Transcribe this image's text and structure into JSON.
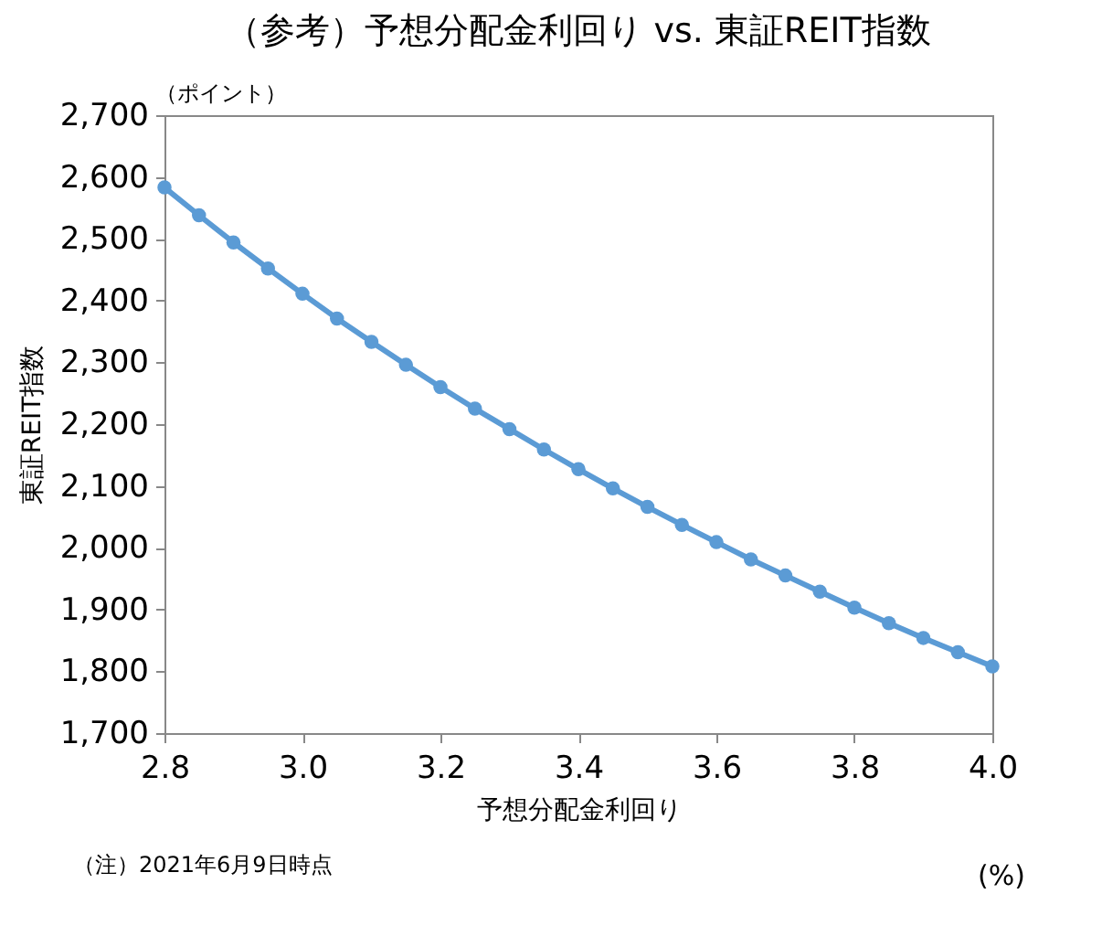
{
  "chart_data": {
    "type": "line",
    "title": "（参考）予想分配金利回り vs. 東証REIT指数",
    "xlabel": "予想分配金利回り",
    "ylabel": "東証REIT指数",
    "x": [
      2.8,
      2.85,
      2.9,
      2.95,
      3.0,
      3.05,
      3.1,
      3.15,
      3.2,
      3.25,
      3.3,
      3.35,
      3.4,
      3.45,
      3.5,
      3.55,
      3.6,
      3.65,
      3.7,
      3.75,
      3.8,
      3.85,
      3.9,
      3.95,
      4.0
    ],
    "series": [
      {
        "color": "#5b9bd5",
        "values": [
          2583,
          2538,
          2494,
          2452,
          2411,
          2371,
          2333,
          2296,
          2260,
          2225,
          2192,
          2159,
          2127,
          2096,
          2066,
          2037,
          2009,
          1981,
          1955,
          1929,
          1903,
          1878,
          1854,
          1831,
          1808
        ]
      }
    ],
    "xlim": [
      2.8,
      4.0
    ],
    "xticks": [
      2.8,
      {
        "value": 3.0,
        "label": "3.0"
      },
      3.2,
      3.4,
      3.6,
      3.8,
      {
        "value": 4.0,
        "label": "4.0"
      }
    ],
    "ylim": [
      1700,
      2700
    ],
    "yticks": [
      {
        "value": 1700,
        "label": "1,700"
      },
      {
        "value": 1800,
        "label": "1,800"
      },
      {
        "value": 1900,
        "label": "1,900"
      },
      {
        "value": 2000,
        "label": "2,000"
      },
      {
        "value": 2100,
        "label": "2,100"
      },
      {
        "value": 2200,
        "label": "2,200"
      },
      {
        "value": 2300,
        "label": "2,300"
      },
      {
        "value": 2400,
        "label": "2,400"
      },
      {
        "value": 2500,
        "label": "2,500"
      },
      {
        "value": 2600,
        "label": "2,600"
      },
      {
        "value": 2700,
        "label": "2,700"
      }
    ],
    "annotations": [
      "（ポイント）",
      "(%)",
      "（注）2021年6月9日時点"
    ],
    "grid": false,
    "marker": "circle",
    "line_style": "solid"
  }
}
